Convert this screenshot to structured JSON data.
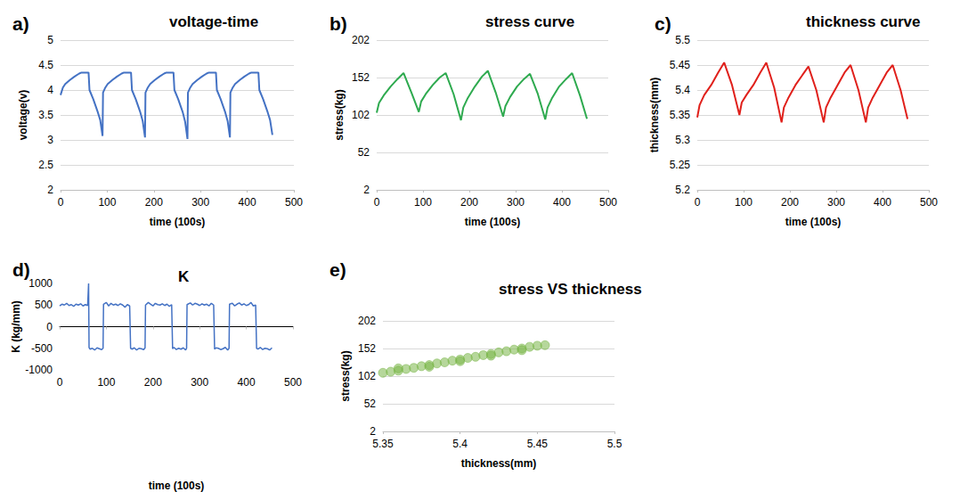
{
  "chart_data": [
    {
      "type": "line",
      "annotation": "a)",
      "title": "voltage-time",
      "x_label": "time (100s)",
      "y_label": "voltage(v)",
      "x": [
        0,
        5,
        10,
        20,
        30,
        40,
        45,
        60,
        62,
        70,
        80,
        85,
        90,
        91,
        96,
        101,
        111,
        121,
        131,
        136,
        151,
        153,
        161,
        171,
        176,
        181,
        182,
        187,
        192,
        202,
        212,
        222,
        227,
        242,
        244,
        252,
        262,
        267,
        272,
        273,
        278,
        283,
        293,
        303,
        313,
        318,
        333,
        335,
        343,
        353,
        358,
        363,
        364,
        369,
        374,
        384,
        394,
        404,
        409,
        424,
        426,
        434,
        444,
        449,
        454
      ],
      "values": [
        3.9,
        4.05,
        4.12,
        4.2,
        4.27,
        4.33,
        4.35,
        4.35,
        4.0,
        3.82,
        3.55,
        3.4,
        3.08,
        3.95,
        4.05,
        4.12,
        4.2,
        4.27,
        4.33,
        4.35,
        4.35,
        4.0,
        3.82,
        3.55,
        3.38,
        3.05,
        3.95,
        4.05,
        4.12,
        4.2,
        4.27,
        4.33,
        4.35,
        4.35,
        4.0,
        3.82,
        3.55,
        3.36,
        3.02,
        3.95,
        4.05,
        4.12,
        4.2,
        4.27,
        4.33,
        4.35,
        4.35,
        4.0,
        3.82,
        3.55,
        3.38,
        3.05,
        3.95,
        4.05,
        4.12,
        4.2,
        4.27,
        4.33,
        4.35,
        4.35,
        4.0,
        3.82,
        3.55,
        3.4,
        3.1
      ],
      "color": "#4472c4",
      "xlim": [
        0,
        500
      ],
      "xticks": [
        0,
        100,
        200,
        300,
        400,
        500
      ],
      "ylim": [
        2,
        5
      ],
      "yticks": [
        2,
        2.5,
        3,
        3.5,
        4,
        4.5,
        5
      ],
      "grid": true
    },
    {
      "type": "line",
      "annotation": "b)",
      "title": "stress curve",
      "x_label": "time (100s)",
      "y_label": "stress(kg)",
      "x": [
        0,
        5,
        15,
        30,
        45,
        58,
        75,
        91,
        96,
        106,
        121,
        136,
        149,
        166,
        182,
        187,
        197,
        212,
        227,
        240,
        257,
        273,
        278,
        288,
        303,
        318,
        331,
        348,
        364,
        369,
        379,
        394,
        409,
        422,
        439,
        454
      ],
      "values": [
        105,
        118,
        128,
        140,
        150,
        158,
        132,
        106,
        120,
        130,
        142,
        152,
        158,
        130,
        95,
        112,
        125,
        140,
        153,
        161,
        132,
        100,
        114,
        126,
        140,
        150,
        157,
        130,
        96,
        112,
        125,
        140,
        150,
        158,
        128,
        97
      ],
      "color": "#2eaa4f",
      "xlim": [
        0,
        500
      ],
      "xticks": [
        0,
        100,
        200,
        300,
        400,
        500
      ],
      "ylim": [
        2,
        202
      ],
      "yticks": [
        2,
        52,
        102,
        152,
        202
      ],
      "grid": true
    },
    {
      "type": "line",
      "annotation": "c)",
      "title": "thickness curve",
      "x_label": "time (100s)",
      "y_label": "thickness(mm)",
      "x": [
        0,
        5,
        15,
        30,
        45,
        58,
        75,
        91,
        96,
        106,
        121,
        136,
        149,
        166,
        182,
        187,
        197,
        212,
        227,
        240,
        257,
        273,
        278,
        288,
        303,
        318,
        331,
        348,
        364,
        369,
        379,
        394,
        409,
        422,
        439,
        454
      ],
      "values": [
        5.345,
        5.37,
        5.39,
        5.41,
        5.435,
        5.455,
        5.41,
        5.35,
        5.375,
        5.39,
        5.41,
        5.435,
        5.455,
        5.405,
        5.335,
        5.365,
        5.385,
        5.41,
        5.43,
        5.447,
        5.4,
        5.335,
        5.365,
        5.385,
        5.41,
        5.435,
        5.45,
        5.4,
        5.335,
        5.365,
        5.385,
        5.41,
        5.435,
        5.45,
        5.4,
        5.342
      ],
      "color": "#e0201b",
      "xlim": [
        0,
        500
      ],
      "xticks": [
        0,
        100,
        200,
        300,
        400,
        500
      ],
      "ylim": [
        5.2,
        5.5
      ],
      "yticks": [
        5.2,
        5.25,
        5.3,
        5.35,
        5.4,
        5.45,
        5.5
      ],
      "grid": true
    },
    {
      "type": "line",
      "annotation": "d)",
      "title": "K",
      "x_label": "time (100s)",
      "y_label": "K (kg/mm)",
      "x": [
        0,
        5,
        10,
        15,
        20,
        25,
        30,
        35,
        40,
        45,
        50,
        55,
        60,
        62,
        63,
        65,
        70,
        75,
        80,
        85,
        90,
        93,
        94,
        100,
        105,
        110,
        115,
        120,
        125,
        130,
        135,
        140,
        145,
        150,
        152,
        155,
        160,
        165,
        170,
        175,
        180,
        183,
        184,
        190,
        195,
        200,
        205,
        210,
        215,
        220,
        225,
        230,
        235,
        240,
        242,
        245,
        250,
        255,
        260,
        265,
        270,
        272,
        273,
        280,
        285,
        290,
        295,
        300,
        305,
        310,
        315,
        320,
        325,
        330,
        332,
        335,
        340,
        345,
        350,
        355,
        360,
        363,
        364,
        370,
        375,
        380,
        385,
        390,
        395,
        400,
        405,
        410,
        415,
        420,
        422,
        425,
        430,
        435,
        440,
        445,
        450,
        455
      ],
      "values": [
        480,
        520,
        500,
        540,
        490,
        510,
        470,
        520,
        500,
        530,
        480,
        510,
        490,
        1000,
        -480,
        -520,
        -500,
        -540,
        -490,
        -510,
        -530,
        -500,
        520,
        560,
        480,
        540,
        500,
        520,
        490,
        530,
        500,
        450,
        510,
        480,
        -500,
        -520,
        -490,
        -540,
        -500,
        -510,
        -530,
        -490,
        500,
        560,
        520,
        480,
        540,
        510,
        500,
        530,
        490,
        520,
        470,
        510,
        -510,
        -480,
        -530,
        -500,
        -520,
        -490,
        -540,
        -500,
        510,
        550,
        500,
        540,
        520,
        490,
        530,
        500,
        520,
        480,
        540,
        500,
        -520,
        -490,
        -500,
        -530,
        -510,
        -480,
        -540,
        -500,
        520,
        540,
        480,
        520,
        550,
        500,
        530,
        490,
        510,
        560,
        480,
        500,
        -500,
        -520,
        -480,
        -530,
        -500,
        -510,
        -540,
        -490
      ],
      "color": "#4472c4",
      "xlim": [
        0,
        500
      ],
      "xticks": [
        0,
        100,
        200,
        300,
        400,
        500
      ],
      "ylim": [
        -1000,
        1000
      ],
      "yticks": [
        -1000,
        -500,
        0,
        500,
        1000
      ],
      "grid": false
    },
    {
      "type": "scatter",
      "annotation": "e)",
      "title": "stress VS thickness",
      "x_label": "thickness(mm)",
      "y_label": "stress(kg)",
      "x": [
        5.35,
        5.355,
        5.36,
        5.36,
        5.365,
        5.37,
        5.375,
        5.38,
        5.38,
        5.385,
        5.39,
        5.395,
        5.4,
        5.4,
        5.405,
        5.41,
        5.415,
        5.42,
        5.42,
        5.425,
        5.43,
        5.435,
        5.44,
        5.44,
        5.445,
        5.45,
        5.455
      ],
      "values": [
        108,
        110,
        112,
        116,
        115,
        117,
        120,
        122,
        119,
        125,
        127,
        130,
        132,
        129,
        135,
        137,
        140,
        142,
        139,
        145,
        147,
        150,
        152,
        149,
        155,
        157,
        158
      ],
      "color": "#7ab648",
      "marker": "circle",
      "xlim": [
        5.35,
        5.5
      ],
      "xticks": [
        5.35,
        5.4,
        5.45,
        5.5
      ],
      "ylim": [
        2,
        202
      ],
      "yticks": [
        2,
        52,
        102,
        152,
        202
      ],
      "grid": true
    }
  ]
}
